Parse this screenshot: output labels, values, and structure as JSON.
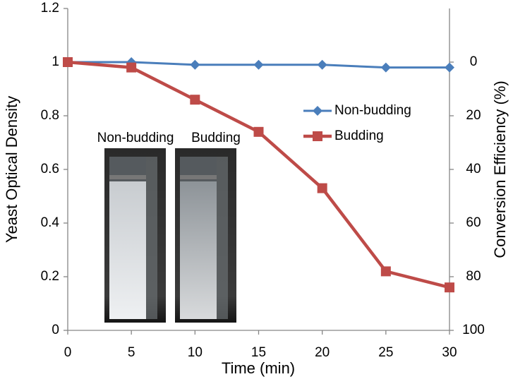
{
  "chart_data": {
    "type": "line",
    "x_label": "Time (min)",
    "y_label": "Yeast Optical Density",
    "y2_label": "Conversion Efficiency (%)",
    "x": [
      0,
      5,
      10,
      15,
      20,
      25,
      30
    ],
    "series": [
      {
        "name": "Non-budding",
        "color": "#4a7ebb",
        "marker": "diamond",
        "values": [
          1,
          1,
          0.99,
          0.99,
          0.99,
          0.98,
          0.98
        ]
      },
      {
        "name": "Budding",
        "color": "#be4b48",
        "marker": "square",
        "values": [
          1,
          0.98,
          0.86,
          0.74,
          0.53,
          0.22,
          0.16
        ]
      }
    ],
    "xlim": [
      0,
      30
    ],
    "xticks": [
      0,
      5,
      10,
      15,
      20,
      25,
      30
    ],
    "ylim": [
      0,
      1.2
    ],
    "yticks": [
      0,
      0.2,
      0.4,
      0.6,
      0.8,
      1,
      1.2
    ],
    "y2lim": [
      100,
      -20
    ],
    "y2ticks": [
      0,
      20,
      40,
      60,
      80,
      100
    ],
    "legend": "upper right",
    "annotations": [
      "Non-budding",
      "Budding"
    ]
  }
}
